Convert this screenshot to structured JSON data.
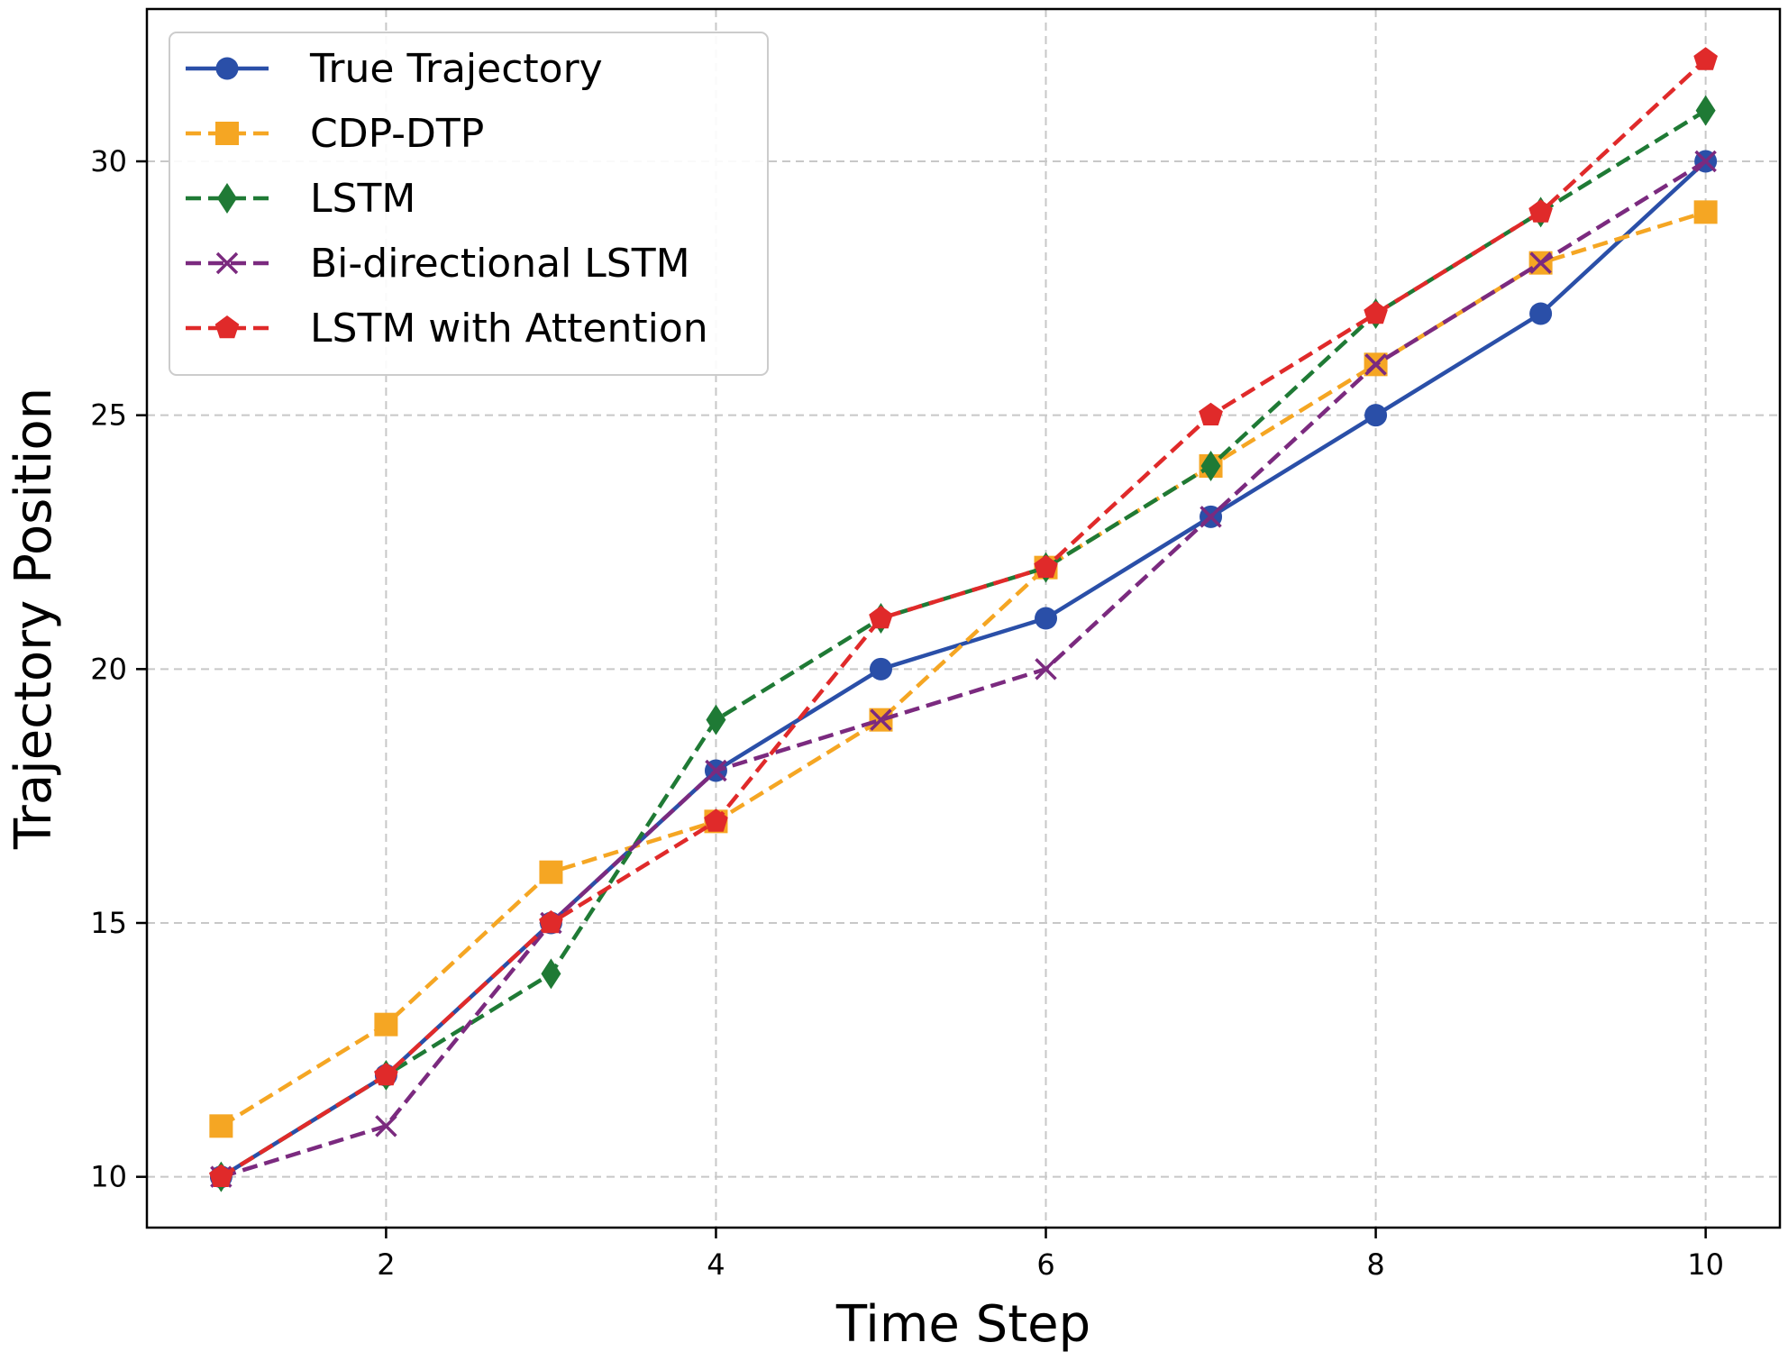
{
  "chart_data": {
    "type": "line",
    "xlabel": "Time Step",
    "ylabel": "Trajectory Position",
    "xlim": [
      0.55,
      10.45
    ],
    "ylim": [
      9.0,
      33.0
    ],
    "xticks": [
      2,
      4,
      6,
      8,
      10
    ],
    "yticks": [
      10,
      15,
      20,
      25,
      30
    ],
    "grid": true,
    "legend_position": "top-left",
    "x": [
      1,
      2,
      3,
      4,
      5,
      6,
      7,
      8,
      9,
      10
    ],
    "series": [
      {
        "name": "True Trajectory",
        "values": [
          10,
          12,
          15,
          18,
          20,
          21,
          23,
          25,
          27,
          30
        ],
        "color": "#2a4fa8",
        "linestyle": "solid",
        "marker": "circle"
      },
      {
        "name": "CDP-DTP",
        "values": [
          11,
          13,
          16,
          17,
          19,
          22,
          24,
          26,
          28,
          29
        ],
        "color": "#f5a623",
        "linestyle": "dashed",
        "marker": "square"
      },
      {
        "name": "LSTM",
        "values": [
          10,
          12,
          14,
          19,
          21,
          22,
          24,
          27,
          29,
          31
        ],
        "color": "#1f7a35",
        "linestyle": "dashed",
        "marker": "diamond"
      },
      {
        "name": "Bi-directional LSTM",
        "values": [
          10,
          11,
          15,
          18,
          19,
          20,
          23,
          26,
          28,
          30
        ],
        "color": "#7b2a7f",
        "linestyle": "dashed",
        "marker": "x"
      },
      {
        "name": "LSTM with Attention",
        "values": [
          10,
          12,
          15,
          17,
          21,
          22,
          25,
          27,
          29,
          32
        ],
        "color": "#e02a2a",
        "linestyle": "dashed",
        "marker": "pentagon"
      }
    ]
  }
}
